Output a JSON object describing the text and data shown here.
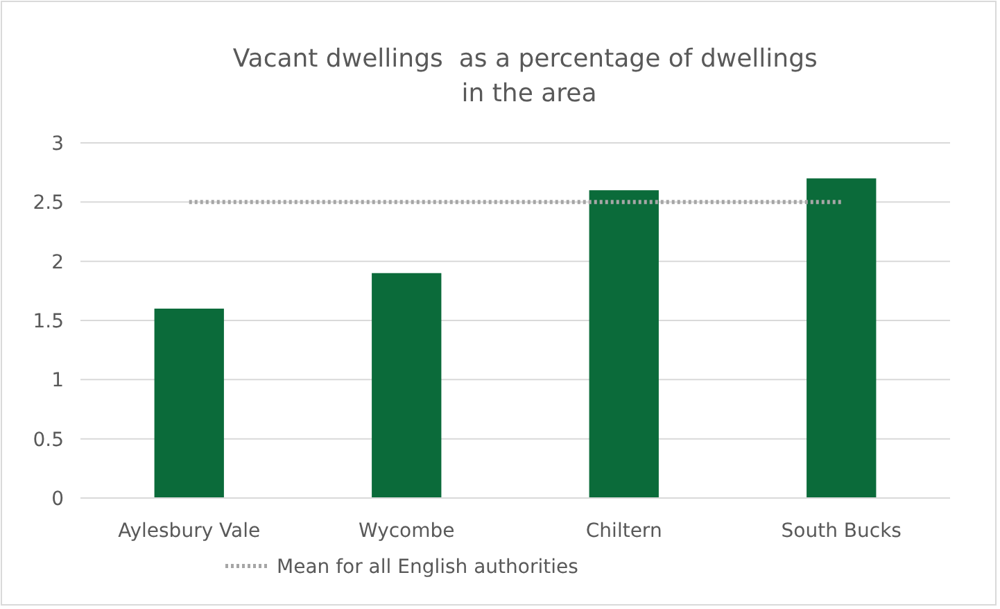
{
  "chart_data": {
    "type": "bar",
    "title": "Vacant dwellings  as a percentage of dwellings  in the area",
    "categories": [
      "Aylesbury Vale",
      "Wycombe",
      "Chiltern",
      "South Bucks"
    ],
    "series": [
      {
        "color": "#0b6b3a",
        "values": [
          1.6,
          1.9,
          2.6,
          2.7
        ]
      },
      {
        "type": "line",
        "name": "Mean for all English authorities",
        "color": "#a6a6a6",
        "values": [
          2.5,
          2.5,
          2.5,
          2.5
        ]
      }
    ],
    "ylim": [
      0,
      3
    ],
    "yticks": [
      0,
      0.5,
      1,
      1.5,
      2,
      2.5,
      3
    ],
    "grid": "y",
    "legend": "bottom",
    "line_style": "dotted"
  }
}
